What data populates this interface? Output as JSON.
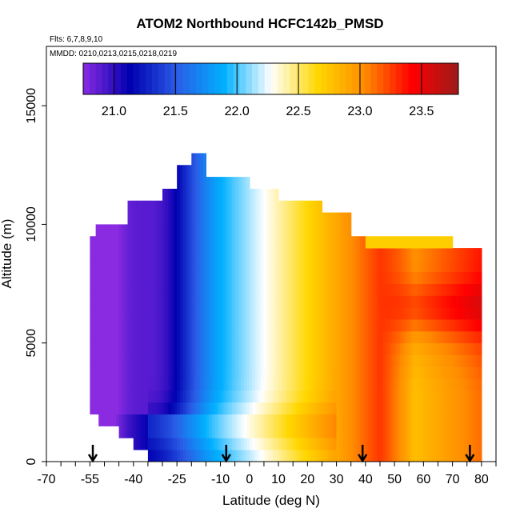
{
  "chart_data": {
    "type": "heatmap",
    "title": "ATOM2 Northbound HCFC142b_PMSD",
    "subtitle_flights": "Flts: 6,7,8,9,10",
    "subtitle_dates": "MMDD: 0210,0213,0215,0218,0219",
    "xlabel": "Latitude (deg N)",
    "ylabel": "Altitude (m)",
    "xlim": [
      -70,
      85
    ],
    "ylim": [
      0,
      17500
    ],
    "x_ticks": [
      "-70",
      "-55",
      "-40",
      "-25",
      "-10",
      "0",
      "10",
      "20",
      "30",
      "40",
      "50",
      "60",
      "70",
      "80"
    ],
    "x_tick_values": [
      -70,
      -55,
      -40,
      -25,
      -10,
      0,
      10,
      20,
      30,
      40,
      50,
      60,
      70,
      80
    ],
    "y_ticks": [
      "0",
      "5000",
      "10000",
      "15000"
    ],
    "y_tick_values": [
      0,
      5000,
      10000,
      15000
    ],
    "colorbar": {
      "min": 20.75,
      "max": 23.8,
      "tick_labels": [
        "21.0",
        "21.5",
        "22.0",
        "22.5",
        "23.0",
        "23.5"
      ],
      "tick_values": [
        21.0,
        21.5,
        22.0,
        22.5,
        23.0,
        23.5
      ],
      "colors": [
        "#8a2be2",
        "#0000b0",
        "#2a5ce6",
        "#00b0ff",
        "#ffffff",
        "#ffd700",
        "#ff8c00",
        "#ff0000",
        "#9b1b1b"
      ]
    },
    "arrow_latitudes": [
      -54,
      -8,
      39,
      76
    ],
    "curtain": {
      "lat_min": -55,
      "lat_max": 80,
      "altitude_bin_m": 500,
      "top_altitude_m": 13000
    }
  }
}
